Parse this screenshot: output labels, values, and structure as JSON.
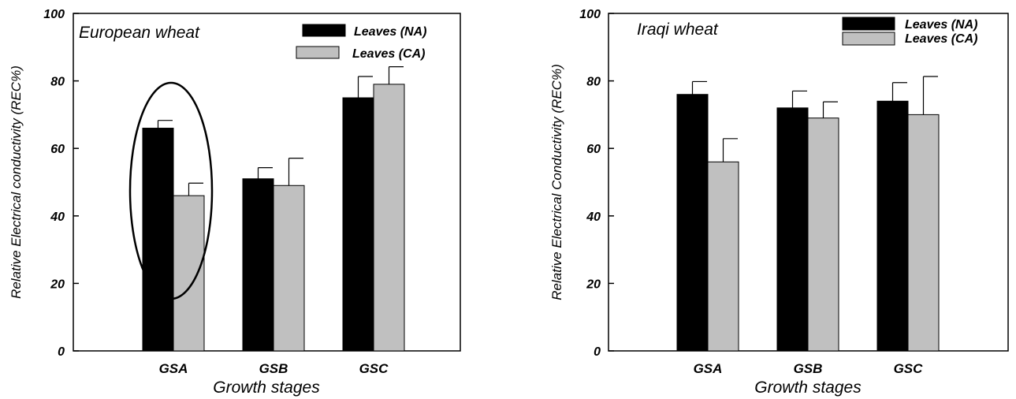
{
  "chart_data": [
    {
      "type": "bar",
      "annotation": "European wheat",
      "categories": [
        "GSA",
        "GSB",
        "GSC"
      ],
      "xlabel": "Growth stages",
      "ylabel": "Relative Electrical conductivity (REC%)",
      "ylim": [
        0,
        100
      ],
      "yticks": [
        0,
        20,
        40,
        60,
        80,
        100
      ],
      "grid": false,
      "legend_position": "top-right",
      "highlight": {
        "category": "GSA",
        "shape": "ellipse"
      },
      "series": [
        {
          "name": "Leaves (NA)",
          "color": "#000000",
          "values": [
            66,
            51,
            75
          ],
          "errors": [
            2.3,
            3.3,
            6.3
          ]
        },
        {
          "name": "Leaves (CA)",
          "color": "#c0c0c0",
          "values": [
            46,
            49,
            79
          ],
          "errors": [
            3.7,
            8.1,
            5.2
          ]
        }
      ]
    },
    {
      "type": "bar",
      "annotation": "Iraqi wheat",
      "categories": [
        "GSA",
        "GSB",
        "GSC"
      ],
      "xlabel": "Growth stages",
      "ylabel": "Relative Electrical Conductivity (REC%)",
      "ylim": [
        0,
        100
      ],
      "yticks": [
        0,
        20,
        40,
        60,
        80,
        100
      ],
      "grid": false,
      "legend_position": "top-right",
      "series": [
        {
          "name": "Leaves (NA)",
          "color": "#000000",
          "values": [
            76,
            72,
            74
          ],
          "errors": [
            3.8,
            5.0,
            5.5
          ]
        },
        {
          "name": "Leaves (CA)",
          "color": "#c0c0c0",
          "values": [
            56,
            69,
            70
          ],
          "errors": [
            6.9,
            4.8,
            11.3
          ]
        }
      ]
    }
  ]
}
